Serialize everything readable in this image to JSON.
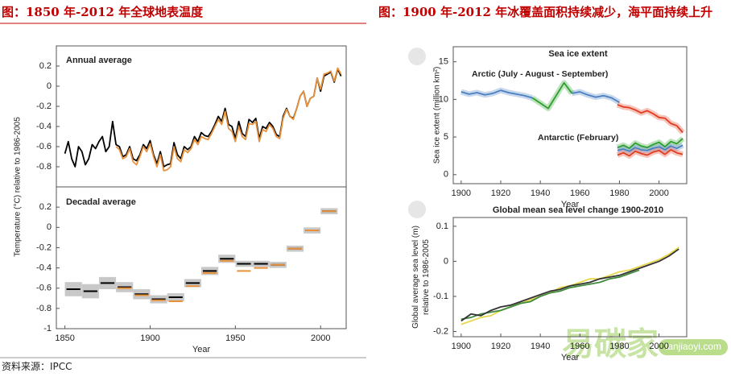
{
  "headings": {
    "left": "图：1850 年-2012 年全球地表温度",
    "right": "图：1900 年-2012 年冰覆盖面积持续减少，海平面持续上升"
  },
  "source": "资料来源：IPCC",
  "watermark": {
    "brand": "易碳家",
    "site": "tanjiaoyi.com"
  },
  "chart_data": [
    {
      "type": "line",
      "title": "Annual average",
      "xlim": [
        1845,
        2015
      ],
      "ylim": [
        -1.0,
        0.4
      ],
      "yticks": [
        0.2,
        0,
        -0.2,
        -0.4,
        -0.6,
        -0.8
      ],
      "series": [
        {
          "color": "#000000",
          "x": [
            1850,
            1852,
            1854,
            1856,
            1858,
            1860,
            1862,
            1864,
            1866,
            1868,
            1870,
            1872,
            1874,
            1876,
            1878,
            1880,
            1882,
            1884,
            1886,
            1888,
            1890,
            1892,
            1894,
            1896,
            1898,
            1900,
            1902,
            1904,
            1906,
            1908,
            1910,
            1912,
            1914,
            1916,
            1918,
            1920,
            1922,
            1924,
            1926,
            1928,
            1930,
            1932,
            1934,
            1936,
            1938,
            1940,
            1942,
            1944,
            1946,
            1948,
            1950,
            1952,
            1954,
            1956,
            1958,
            1960,
            1962,
            1964,
            1966,
            1968,
            1970,
            1972,
            1974,
            1976,
            1978,
            1980,
            1982,
            1984,
            1986,
            1988,
            1990,
            1992,
            1994,
            1996,
            1998,
            2000,
            2002,
            2004,
            2006,
            2008,
            2010,
            2012
          ],
          "values": [
            -0.67,
            -0.55,
            -0.72,
            -0.8,
            -0.6,
            -0.65,
            -0.78,
            -0.72,
            -0.58,
            -0.62,
            -0.55,
            -0.5,
            -0.65,
            -0.6,
            -0.35,
            -0.58,
            -0.6,
            -0.7,
            -0.68,
            -0.6,
            -0.72,
            -0.74,
            -0.68,
            -0.58,
            -0.62,
            -0.54,
            -0.68,
            -0.77,
            -0.65,
            -0.8,
            -0.78,
            -0.77,
            -0.56,
            -0.68,
            -0.72,
            -0.6,
            -0.63,
            -0.6,
            -0.5,
            -0.55,
            -0.46,
            -0.49,
            -0.5,
            -0.45,
            -0.38,
            -0.3,
            -0.35,
            -0.22,
            -0.38,
            -0.4,
            -0.52,
            -0.35,
            -0.47,
            -0.5,
            -0.33,
            -0.36,
            -0.32,
            -0.52,
            -0.4,
            -0.42,
            -0.36,
            -0.4,
            -0.48,
            -0.5,
            -0.3,
            -0.22,
            -0.3,
            -0.32,
            -0.22,
            -0.1,
            -0.05,
            -0.2,
            -0.12,
            -0.1,
            0.08,
            -0.05,
            0.1,
            0.12,
            0.14,
            0.04,
            0.17,
            0.1
          ]
        },
        {
          "color": "#e8913a",
          "x": [
            1880,
            1882,
            1884,
            1886,
            1888,
            1890,
            1892,
            1894,
            1896,
            1898,
            1900,
            1902,
            1904,
            1906,
            1908,
            1910,
            1912,
            1914,
            1916,
            1918,
            1920,
            1922,
            1924,
            1926,
            1928,
            1930,
            1932,
            1934,
            1936,
            1938,
            1940,
            1942,
            1944,
            1946,
            1948,
            1950,
            1952,
            1954,
            1956,
            1958,
            1960,
            1962,
            1964,
            1966,
            1968,
            1970,
            1972,
            1974,
            1976,
            1978,
            1980,
            1982,
            1984,
            1986,
            1988,
            1990,
            1992,
            1994,
            1996,
            1998,
            2000,
            2002,
            2004,
            2006,
            2008,
            2010,
            2012
          ],
          "values": [
            -0.6,
            -0.63,
            -0.72,
            -0.7,
            -0.62,
            -0.75,
            -0.78,
            -0.7,
            -0.6,
            -0.65,
            -0.57,
            -0.7,
            -0.8,
            -0.68,
            -0.84,
            -0.83,
            -0.8,
            -0.6,
            -0.72,
            -0.75,
            -0.63,
            -0.66,
            -0.62,
            -0.53,
            -0.58,
            -0.5,
            -0.52,
            -0.53,
            -0.47,
            -0.4,
            -0.33,
            -0.38,
            -0.25,
            -0.42,
            -0.45,
            -0.55,
            -0.4,
            -0.5,
            -0.53,
            -0.37,
            -0.38,
            -0.35,
            -0.55,
            -0.43,
            -0.45,
            -0.38,
            -0.42,
            -0.5,
            -0.52,
            -0.32,
            -0.23,
            -0.3,
            -0.33,
            -0.22,
            -0.1,
            -0.05,
            -0.2,
            -0.12,
            -0.1,
            0.08,
            -0.03,
            0.12,
            0.13,
            0.15,
            0.05,
            0.18,
            0.12
          ]
        }
      ]
    },
    {
      "type": "interval",
      "title": "Decadal average",
      "xlabel": "Year",
      "ylabel": [
        "Temperature (°C) relative to 1986-2005"
      ],
      "xlim": [
        1845,
        2015
      ],
      "ylim": [
        -1.0,
        0.4
      ],
      "yticks": [
        0.2,
        0,
        -0.2,
        -0.4,
        -0.6,
        -0.8,
        -1
      ],
      "xticks": [
        1850,
        1900,
        1950,
        2000
      ],
      "x": [
        1850,
        1860,
        1870,
        1880,
        1890,
        1900,
        1910,
        1920,
        1930,
        1940,
        1950,
        1960,
        1970,
        1980,
        1990,
        2000
      ],
      "series": [
        {
          "color": "#000000",
          "values": [
            -0.61,
            -0.63,
            -0.55,
            -0.59,
            -0.66,
            -0.71,
            -0.69,
            -0.55,
            -0.43,
            -0.31,
            -0.36,
            -0.36,
            -0.37,
            -0.21,
            -0.03,
            0.16
          ],
          "errors": [
            0.07,
            0.07,
            0.06,
            0.05,
            0.05,
            0.04,
            0.04,
            0.04,
            0.04,
            0.04,
            0.03,
            0.03,
            0.03,
            0.03,
            0.03,
            0.03
          ]
        },
        {
          "color": "#e8913a",
          "values": [
            null,
            null,
            null,
            -0.6,
            -0.67,
            -0.72,
            -0.73,
            -0.58,
            -0.45,
            -0.33,
            -0.43,
            -0.4,
            -0.37,
            -0.21,
            -0.03,
            0.16
          ]
        }
      ]
    },
    {
      "type": "line",
      "title": "Sea ice extent",
      "xlabel": "Year",
      "ylabel": [
        "Sea ice extent (million km²)"
      ],
      "band": true,
      "annotations": [
        "Arctic (July - August - September)",
        "Antarctic (February)"
      ],
      "xlim": [
        1896,
        2014
      ],
      "ylim": [
        -1.2,
        17
      ],
      "yticks": [
        0,
        5,
        10,
        15
      ],
      "xticks": [
        1900,
        1920,
        1940,
        1960,
        1980,
        2000
      ],
      "series": [
        {
          "color": "#4a7fc1",
          "x": [
            1900,
            1904,
            1908,
            1912,
            1916,
            1920,
            1924,
            1928,
            1932,
            1936
          ],
          "values": [
            11,
            10.7,
            10.9,
            10.6,
            10.8,
            11.2,
            10.9,
            10.7,
            10.5,
            10.2
          ]
        },
        {
          "color": "#2ca02c",
          "x": [
            1936,
            1940,
            1944,
            1948,
            1952,
            1956
          ],
          "values": [
            10.2,
            9.5,
            8.8,
            10.5,
            12.2,
            10.8
          ]
        },
        {
          "color": "#4a7fc1",
          "x": [
            1956,
            1960,
            1964,
            1968,
            1972,
            1976,
            1980
          ],
          "values": [
            10.8,
            11,
            10.6,
            10.3,
            10.5,
            10.2,
            9.6
          ]
        },
        {
          "color": "#e03c1f",
          "x": [
            1979,
            1982,
            1985,
            1988,
            1991,
            1994,
            1997,
            2000,
            2003,
            2006,
            2009,
            2012
          ],
          "values": [
            9.3,
            9,
            8.9,
            8.6,
            8.2,
            8.5,
            8.1,
            7.6,
            7.5,
            6.8,
            6.5,
            5.6
          ]
        },
        {
          "color": "#2ca02c",
          "x": [
            1979,
            1982,
            1985,
            1988,
            1991,
            1994,
            1997,
            2000,
            2003,
            2006,
            2009,
            2012
          ],
          "values": [
            3.6,
            3.9,
            3.5,
            4.2,
            3.8,
            3.6,
            4.0,
            4.3,
            3.7,
            4.4,
            4.1,
            4.8
          ]
        },
        {
          "color": "#4a7fc1",
          "x": [
            1979,
            1982,
            1985,
            1988,
            1991,
            1994,
            1997,
            2000,
            2003,
            2006,
            2009,
            2012
          ],
          "values": [
            3.2,
            3.4,
            3.1,
            3.6,
            3.3,
            3.2,
            3.5,
            3.7,
            3.3,
            3.8,
            3.5,
            3.9
          ]
        },
        {
          "color": "#e03c1f",
          "x": [
            1979,
            1982,
            1985,
            1988,
            1991,
            1994,
            1997,
            2000,
            2003,
            2006,
            2009,
            2012
          ],
          "values": [
            2.6,
            2.9,
            2.5,
            3.1,
            2.8,
            2.6,
            3.0,
            3.2,
            2.7,
            3.3,
            2.9,
            2.7
          ]
        }
      ]
    },
    {
      "type": "line",
      "title": "Global mean sea level change 1900-2010",
      "xlabel": "Year",
      "ylabel": [
        "Global average sea level (m)",
        "relative to 1986-2005"
      ],
      "xlim": [
        1896,
        2014
      ],
      "ylim": [
        -0.215,
        0.125
      ],
      "yticks": [
        -0.2,
        -0.1,
        0,
        0.1
      ],
      "xticks": [
        1900,
        1920,
        1940,
        1960,
        1980,
        2000
      ],
      "series": [
        {
          "color": "#e6d84a",
          "x": [
            1900,
            1905,
            1910,
            1915,
            1920,
            1925,
            1930,
            1935,
            1940,
            1945,
            1950,
            1955,
            1960,
            1965,
            1970,
            1975,
            1980,
            1985,
            1990,
            1995,
            2000,
            2005,
            2010
          ],
          "values": [
            -0.18,
            -0.17,
            -0.16,
            -0.155,
            -0.14,
            -0.13,
            -0.12,
            -0.11,
            -0.1,
            -0.09,
            -0.075,
            -0.07,
            -0.06,
            -0.05,
            -0.05,
            -0.04,
            -0.03,
            -0.025,
            -0.015,
            -0.005,
            0.005,
            0.02,
            0.04
          ]
        },
        {
          "color": "#3f8a3a",
          "x": [
            1900,
            1905,
            1910,
            1915,
            1920,
            1925,
            1930,
            1935,
            1940,
            1945,
            1950,
            1955,
            1960,
            1965,
            1970,
            1975,
            1980,
            1985,
            1990
          ],
          "values": [
            -0.165,
            -0.16,
            -0.15,
            -0.145,
            -0.14,
            -0.13,
            -0.12,
            -0.115,
            -0.1,
            -0.09,
            -0.085,
            -0.075,
            -0.07,
            -0.065,
            -0.06,
            -0.05,
            -0.045,
            -0.035,
            -0.025
          ]
        },
        {
          "color": "#333333",
          "x": [
            1900,
            1905,
            1910,
            1915,
            1920,
            1925,
            1930,
            1935,
            1940,
            1945,
            1950,
            1955,
            1960,
            1965,
            1970,
            1975,
            1980,
            1985,
            1990,
            1995,
            2000,
            2005,
            2010
          ],
          "values": [
            -0.17,
            -0.15,
            -0.155,
            -0.14,
            -0.13,
            -0.125,
            -0.115,
            -0.105,
            -0.095,
            -0.085,
            -0.08,
            -0.07,
            -0.065,
            -0.06,
            -0.05,
            -0.045,
            -0.04,
            -0.03,
            -0.02,
            -0.01,
            0,
            0.015,
            0.035
          ]
        }
      ]
    }
  ]
}
